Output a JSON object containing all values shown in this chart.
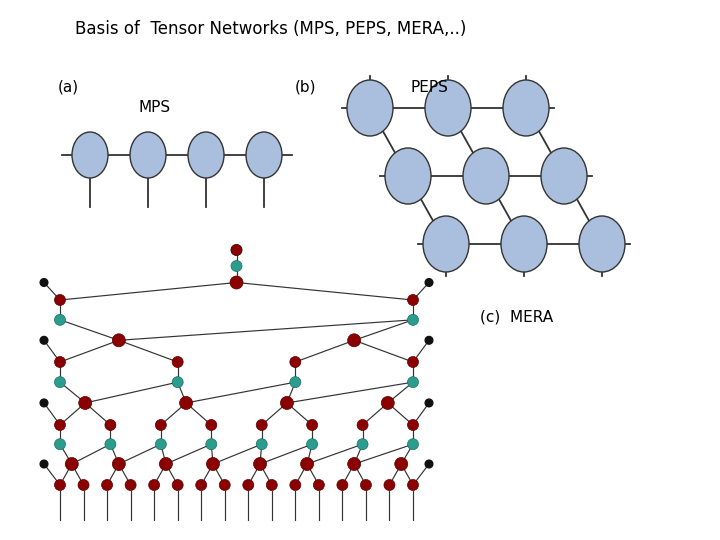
{
  "title": "Basis of  Tensor Networks (MPS, PEPS, MERA,..)",
  "title_fontsize": 12,
  "node_color_mps_peps": "#aabfdd",
  "node_color_mera_iso": "#2a9d8f",
  "node_color_mera_dis": "#8b0000",
  "node_color_black": "#111111",
  "line_color": "#333333",
  "background": "#ffffff",
  "label_a": "(a)",
  "label_b": "(b)",
  "label_c": "(c)  MERA",
  "label_mps": "MPS",
  "label_peps": "PEPS"
}
